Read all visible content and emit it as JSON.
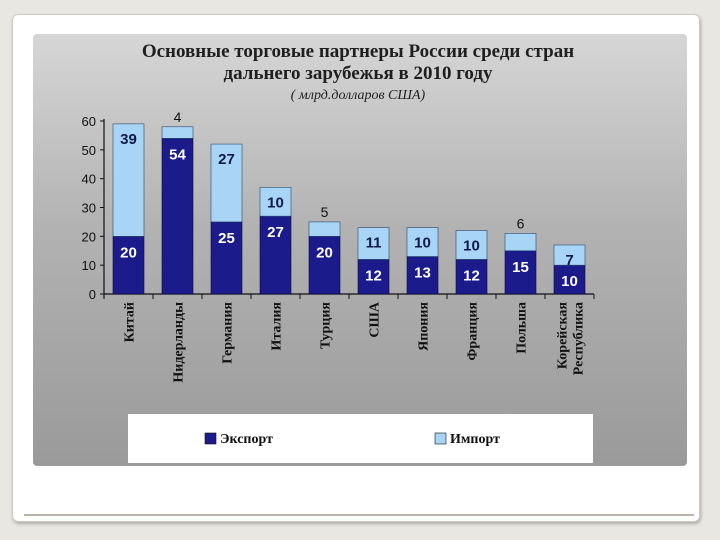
{
  "chart_data": {
    "type": "bar",
    "stacked": true,
    "title_lines": [
      "Основные торговые партнеры России среди стран",
      "дальнего зарубежья в 2010 году"
    ],
    "subtitle": "( млрд.долларов США)",
    "categories": [
      "Китай",
      "Нидерланды",
      "Германия",
      "Италия",
      "Турция",
      "США",
      "Япония",
      "Франция",
      "Польша",
      "Корейская Республика"
    ],
    "series": [
      {
        "name": "Экспорт",
        "values": [
          20,
          54,
          25,
          27,
          20,
          12,
          13,
          12,
          15,
          10
        ],
        "color": "#1b1b8c"
      },
      {
        "name": "Импорт",
        "values": [
          39,
          4,
          27,
          10,
          5,
          11,
          10,
          10,
          6,
          7
        ],
        "color": "#a8d4f6"
      }
    ],
    "ylim": [
      0,
      60
    ],
    "yticks": [
      0,
      10,
      20,
      30,
      40,
      50,
      60
    ],
    "grid": false,
    "legend_position": "bottom"
  },
  "colors": {
    "export": "#1b1b8c",
    "import": "#a8d4f6",
    "panel": "#b4b4b4"
  }
}
